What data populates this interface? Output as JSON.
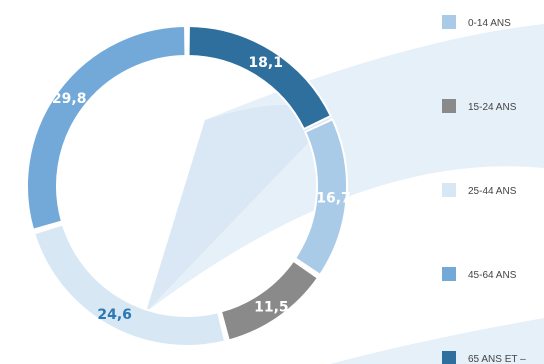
{
  "chart_data": {
    "type": "pie",
    "variant": "donut",
    "title": "",
    "categories": [
      "0-14 ANS",
      "15-24 ANS",
      "25-44 ANS",
      "45-64 ANS",
      "65 ANS ET –"
    ],
    "values": [
      16.7,
      11.5,
      24.6,
      29.8,
      18.1
    ],
    "value_labels": [
      "16,7",
      "11,5",
      "24,6",
      "29,8",
      "18,1"
    ],
    "colors": [
      "#a9cbe8",
      "#8a8a8a",
      "#d8e7f4",
      "#72a9d9",
      "#2f6f9e"
    ],
    "label_colors": [
      "#ffffff",
      "#ffffff",
      "#2a78b4",
      "#ffffff",
      "#ffffff"
    ],
    "legend_placement": "right"
  }
}
